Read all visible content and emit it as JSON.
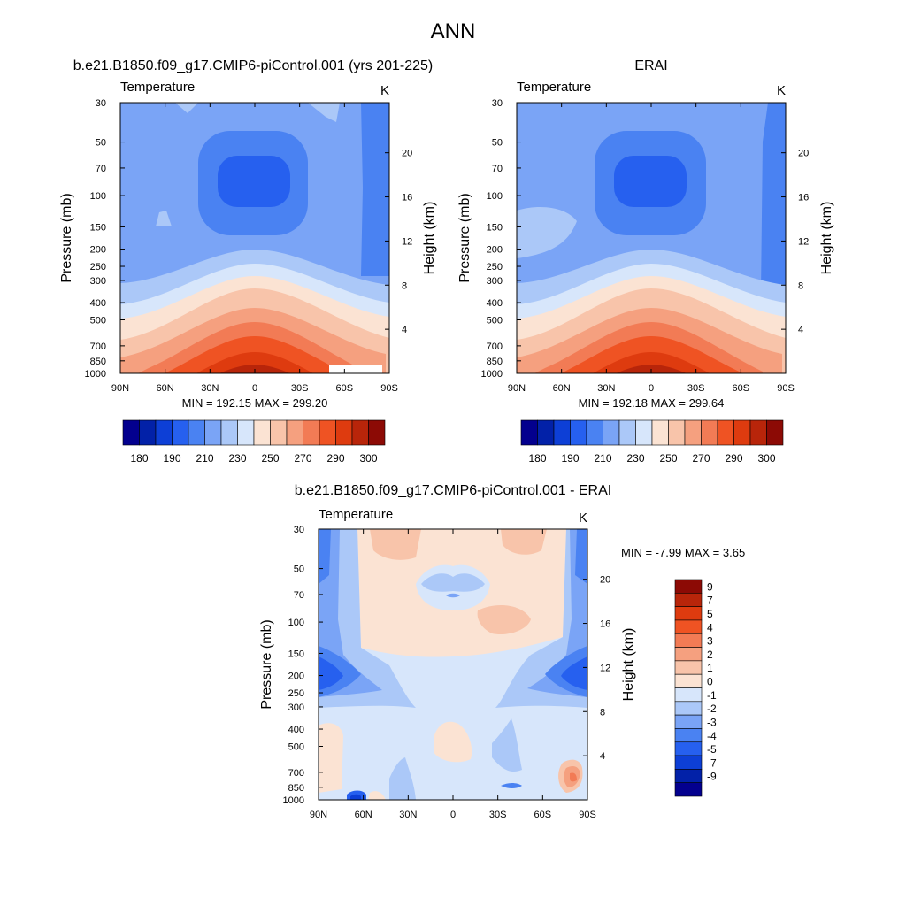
{
  "figure_title": "ANN",
  "chart_data": [
    {
      "type": "heatmap",
      "id": "model",
      "title": "b.e21.B1850.f09_g17.CMIP6-piControl.001 (yrs 201-225)",
      "left_label": "Temperature",
      "units": "K",
      "ylabel": "Pressure (mb)",
      "ylabel_right": "Height (km)",
      "x_ticks": [
        "90N",
        "60N",
        "30N",
        "0",
        "30S",
        "60S",
        "90S"
      ],
      "y_ticks": [
        "30",
        "50",
        "70",
        "100",
        "150",
        "200",
        "250",
        "300",
        "400",
        "500",
        "700",
        "850",
        "1000"
      ],
      "right_ticks": [
        "20",
        "16",
        "12",
        "8",
        "4"
      ],
      "stats": "MIN = 192.15  MAX = 299.20",
      "colorbar_labels": [
        "180",
        "190",
        "210",
        "230",
        "250",
        "270",
        "290",
        "300"
      ]
    },
    {
      "type": "heatmap",
      "id": "obs",
      "title": "ERAI",
      "left_label": "Temperature",
      "units": "K",
      "ylabel": "Pressure (mb)",
      "ylabel_right": "Height (km)",
      "x_ticks": [
        "90N",
        "60N",
        "30N",
        "0",
        "30S",
        "60S",
        "90S"
      ],
      "y_ticks": [
        "30",
        "50",
        "70",
        "100",
        "150",
        "200",
        "250",
        "300",
        "400",
        "500",
        "700",
        "850",
        "1000"
      ],
      "right_ticks": [
        "20",
        "16",
        "12",
        "8",
        "4"
      ],
      "stats": "MIN = 192.18  MAX = 299.64",
      "colorbar_labels": [
        "180",
        "190",
        "210",
        "230",
        "250",
        "270",
        "290",
        "300"
      ]
    },
    {
      "type": "heatmap",
      "id": "diff",
      "title": "b.e21.B1850.f09_g17.CMIP6-piControl.001 - ERAI",
      "left_label": "Temperature",
      "units": "K",
      "ylabel": "Pressure (mb)",
      "ylabel_right": "Height (km)",
      "x_ticks": [
        "90N",
        "60N",
        "30N",
        "0",
        "30S",
        "60S",
        "90S"
      ],
      "y_ticks": [
        "30",
        "50",
        "70",
        "100",
        "150",
        "200",
        "250",
        "300",
        "400",
        "500",
        "700",
        "850",
        "1000"
      ],
      "right_ticks": [
        "20",
        "16",
        "12",
        "8",
        "4"
      ],
      "stats": "MIN =  -7.99  MAX =   3.65",
      "colorbar_labels": [
        "9",
        "7",
        "5",
        "4",
        "3",
        "2",
        "1",
        "0",
        "-1",
        "-2",
        "-3",
        "-4",
        "-5",
        "-7",
        "-9"
      ]
    }
  ],
  "colors": {
    "abs_palette": [
      "#03008e",
      "#0221a8",
      "#0d3fd6",
      "#2660ef",
      "#4a82f2",
      "#7aa4f6",
      "#abc8f8",
      "#d7e6fb",
      "#fbe3d3",
      "#f8c4aa",
      "#f5a07f",
      "#f27b55",
      "#ef5323",
      "#de3b0f",
      "#b8250a",
      "#8c0a05"
    ],
    "diff_palette": [
      "#8c0a05",
      "#b8250a",
      "#de3b0f",
      "#ef5323",
      "#f27b55",
      "#f5a07f",
      "#f8c4aa",
      "#fbe3d3",
      "#d7e6fb",
      "#abc8f8",
      "#7aa4f6",
      "#4a82f2",
      "#2660ef",
      "#0d3fd6",
      "#0221a8",
      "#03008e"
    ]
  }
}
